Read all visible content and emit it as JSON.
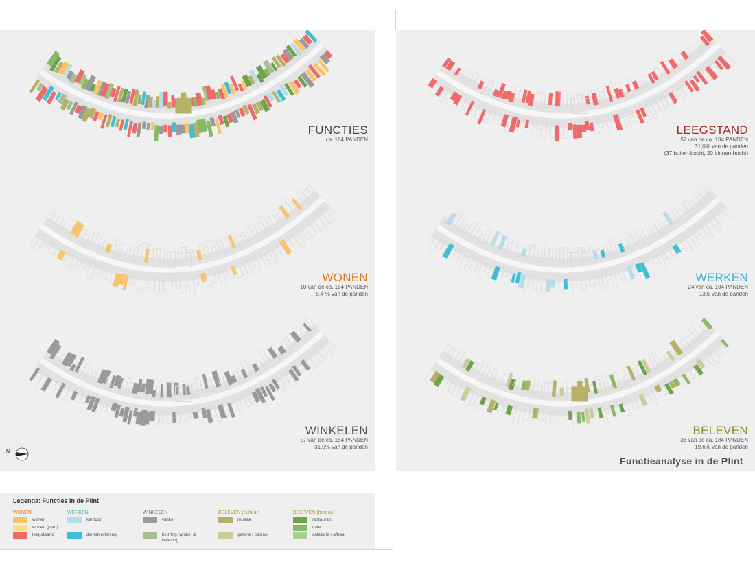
{
  "colors": {
    "wonen": "#f7c46b",
    "wonen_plan": "#f6e08a",
    "leegstaand": "#ef6a6a",
    "kantoor": "#b8dce8",
    "dienstverlening": "#3fbfd6",
    "winkel": "#9a9a9a",
    "blurring": "#a7bf8f",
    "musea": "#b7b068",
    "galerie_casino": "#cdcaa0",
    "restaurant": "#6aa548",
    "cafe": "#88ba66",
    "cafetaria": "#a9cf93",
    "outline": "#dcdcdc",
    "panel_bg": "#efefef"
  },
  "maps": {
    "functies": {
      "title": "FUNCTIES",
      "title_color": "#444444",
      "lines": [
        "ca. 184 PANDEN"
      ]
    },
    "wonen": {
      "title": "WONEN",
      "title_color": "#e07a1f",
      "lines": [
        "10 van de ca. 184 PANDEN",
        "5,4 % van de panden"
      ]
    },
    "winkelen": {
      "title": "WINKELEN",
      "title_color": "#555555",
      "lines": [
        "57 van de ca. 184 PANDEN",
        "31,0% van de panden"
      ]
    },
    "leegstand": {
      "title": "LEEGSTAND",
      "title_color": "#9b2a25",
      "lines": [
        "57 van de ca. 184 PANDEN",
        "31,0% van de panden",
        "(37 buiten-bocht, 20 binnen-bocht)"
      ]
    },
    "werken": {
      "title": "WERKEN",
      "title_color": "#3fb0cf",
      "lines": [
        "24 van ca. 184 PANDEN",
        "13% van de panden"
      ]
    },
    "beleven": {
      "title": "BELEVEN",
      "title_color": "#8f8a2e",
      "lines": [
        "36 van de ca. 184 PANDEN",
        "19,6% van de panden"
      ]
    }
  },
  "caption": "Functieanalyse in de Plint",
  "legend": {
    "title": "Legenda: Functies in de Plint",
    "groups": [
      {
        "head": "WONEN",
        "head_color": "#e07a1f",
        "items": [
          {
            "label": "wonen",
            "color": "#f7c46b"
          },
          {
            "label": "wonen (plan)",
            "color": "#f6e08a"
          },
          {
            "label": "leegstaand",
            "color": "#ef6a6a"
          }
        ]
      },
      {
        "head": "WERKEN",
        "head_color": "#3fb0cf",
        "items": [
          {
            "label": "kantoor",
            "color": "#b8dce8"
          },
          {
            "label": "",
            "color": ""
          },
          {
            "label": "dienstverlening",
            "color": "#3fbfd6"
          }
        ]
      },
      {
        "head": "WINKELEN",
        "head_color": "#777777",
        "items": [
          {
            "label": "winkel",
            "color": "#9a9a9a"
          },
          {
            "label": "",
            "color": ""
          },
          {
            "label": "blurring: winkel & beleving",
            "color": "#a7bf8f"
          }
        ]
      },
      {
        "head": "BELEVEN (cultuur)",
        "head_color": "#a89c3a",
        "items": [
          {
            "label": "musea",
            "color": "#b7b068"
          },
          {
            "label": "",
            "color": ""
          },
          {
            "label": "galerie / casino",
            "color": "#cdcaa0"
          }
        ]
      },
      {
        "head": "BELEVEN (horeca)",
        "head_color": "#a89c3a",
        "items": [
          {
            "label": "restaurant",
            "color": "#6aa548"
          },
          {
            "label": "cafe",
            "color": "#88ba66"
          },
          {
            "label": "cafetaria / afhaal",
            "color": "#a9cf93"
          }
        ]
      }
    ]
  },
  "north_label": "N"
}
